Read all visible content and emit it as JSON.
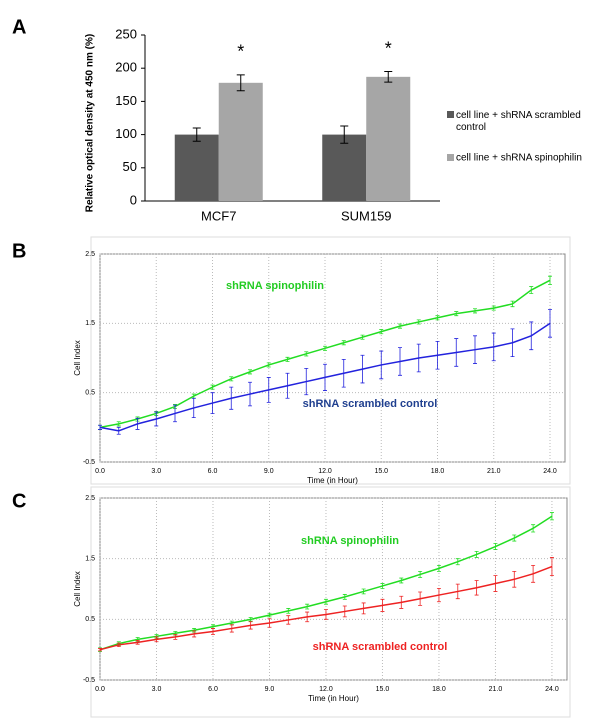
{
  "chart_data": [
    {
      "type": "bar",
      "panel_label": "A",
      "y_label": "Relative optical density at 450 nm (%)",
      "categories": [
        "MCF7",
        "SUM159"
      ],
      "series": [
        {
          "name": "cell line + shRNA scrambled control",
          "color": "#595959",
          "values": [
            100,
            100
          ],
          "errors": [
            10,
            13
          ]
        },
        {
          "name": "cell line + shRNA spinophilin",
          "color": "#a6a6a6",
          "values": [
            178,
            187
          ],
          "errors": [
            12,
            8
          ]
        }
      ],
      "annotations": [
        {
          "text": "*"
        },
        {
          "text": "*"
        }
      ],
      "ylim": [
        0,
        250
      ],
      "yticks": [
        0,
        50,
        100,
        150,
        200,
        250
      ]
    },
    {
      "type": "line",
      "panel_label": "B",
      "x_label": "Time (in Hour)",
      "y_label": "Cell Index",
      "x": [
        0,
        1,
        2,
        3,
        4,
        5,
        6,
        7,
        8,
        9,
        10,
        11,
        12,
        13,
        14,
        15,
        16,
        17,
        18,
        19,
        20,
        21,
        22,
        23,
        24
      ],
      "series": [
        {
          "name": "shRNA spinophilin",
          "color": "#22dd22",
          "values": [
            0.0,
            0.05,
            0.12,
            0.2,
            0.3,
            0.45,
            0.58,
            0.7,
            0.8,
            0.9,
            0.98,
            1.06,
            1.14,
            1.22,
            1.3,
            1.38,
            1.46,
            1.52,
            1.58,
            1.64,
            1.68,
            1.72,
            1.78,
            1.98,
            2.12
          ],
          "errors": [
            0.03,
            0.03,
            0.03,
            0.03,
            0.03,
            0.03,
            0.03,
            0.03,
            0.03,
            0.03,
            0.03,
            0.03,
            0.03,
            0.03,
            0.03,
            0.03,
            0.03,
            0.03,
            0.03,
            0.03,
            0.03,
            0.03,
            0.04,
            0.05,
            0.06
          ]
        },
        {
          "name": "shRNA scrambled control",
          "color": "#2222dd",
          "values": [
            0.0,
            -0.05,
            0.05,
            0.12,
            0.2,
            0.28,
            0.35,
            0.42,
            0.48,
            0.54,
            0.6,
            0.66,
            0.72,
            0.78,
            0.84,
            0.9,
            0.95,
            1.0,
            1.04,
            1.08,
            1.12,
            1.16,
            1.22,
            1.32,
            1.5
          ],
          "errors": [
            0.03,
            0.05,
            0.08,
            0.1,
            0.12,
            0.14,
            0.15,
            0.16,
            0.17,
            0.18,
            0.18,
            0.19,
            0.19,
            0.2,
            0.2,
            0.2,
            0.2,
            0.2,
            0.2,
            0.2,
            0.2,
            0.2,
            0.2,
            0.2,
            0.2
          ]
        }
      ],
      "annotations": [
        {
          "text": "shRNA  spinophilin",
          "color": "#22cc22"
        },
        {
          "text": "shRNA  scrambled control",
          "color": "#1f3f8f"
        }
      ],
      "xlim": [
        0,
        24.8
      ],
      "ylim": [
        -0.5,
        2.5
      ],
      "xticks": [
        {
          "value": 0,
          "label": "0.0"
        },
        {
          "value": 3,
          "label": "3.0"
        },
        {
          "value": 6,
          "label": "6.0"
        },
        {
          "value": 9,
          "label": "9.0"
        },
        {
          "value": 12,
          "label": "12.0"
        },
        {
          "value": 15,
          "label": "15.0"
        },
        {
          "value": 18,
          "label": "18.0"
        },
        {
          "value": 21,
          "label": "21.0"
        },
        {
          "value": 24,
          "label": "24.0"
        }
      ],
      "yticks": [
        -0.5,
        0.5,
        1.5,
        2.5
      ],
      "grid": true
    },
    {
      "type": "line",
      "panel_label": "C",
      "x_label": "Time (in Hour)",
      "y_label": "Cell Index",
      "x": [
        0,
        1,
        2,
        3,
        4,
        5,
        6,
        7,
        8,
        9,
        10,
        11,
        12,
        13,
        14,
        15,
        16,
        17,
        18,
        19,
        20,
        21,
        22,
        23,
        24
      ],
      "series": [
        {
          "name": "shRNA spinophilin",
          "color": "#22dd22",
          "values": [
            0.0,
            0.1,
            0.17,
            0.22,
            0.27,
            0.32,
            0.38,
            0.44,
            0.5,
            0.57,
            0.64,
            0.71,
            0.79,
            0.87,
            0.96,
            1.05,
            1.14,
            1.24,
            1.34,
            1.45,
            1.57,
            1.7,
            1.84,
            2.0,
            2.2
          ],
          "errors": [
            0.03,
            0.03,
            0.03,
            0.03,
            0.03,
            0.03,
            0.03,
            0.03,
            0.03,
            0.03,
            0.04,
            0.04,
            0.04,
            0.04,
            0.04,
            0.04,
            0.04,
            0.05,
            0.05,
            0.05,
            0.05,
            0.05,
            0.05,
            0.06,
            0.06
          ]
        },
        {
          "name": "shRNA scrambled control",
          "color": "#ee2222",
          "values": [
            0.0,
            0.08,
            0.12,
            0.17,
            0.21,
            0.26,
            0.3,
            0.35,
            0.4,
            0.44,
            0.49,
            0.54,
            0.58,
            0.63,
            0.68,
            0.73,
            0.78,
            0.84,
            0.9,
            0.96,
            1.02,
            1.09,
            1.16,
            1.25,
            1.37
          ],
          "errors": [
            0.02,
            0.03,
            0.03,
            0.04,
            0.04,
            0.05,
            0.05,
            0.06,
            0.06,
            0.07,
            0.07,
            0.08,
            0.08,
            0.09,
            0.09,
            0.1,
            0.1,
            0.11,
            0.11,
            0.12,
            0.12,
            0.13,
            0.13,
            0.14,
            0.15
          ]
        }
      ],
      "annotations": [
        {
          "text": "shRNA  spinophilin",
          "color": "#22cc22"
        },
        {
          "text": "shRNA  scrambled control",
          "color": "#ee2222"
        }
      ],
      "xlim": [
        0,
        24.8
      ],
      "ylim": [
        -0.5,
        2.5
      ],
      "xticks": [
        {
          "value": 0,
          "label": "0.0"
        },
        {
          "value": 3,
          "label": "3.0"
        },
        {
          "value": 6,
          "label": "6.0"
        },
        {
          "value": 9,
          "label": "9.0"
        },
        {
          "value": 12,
          "label": "12.0"
        },
        {
          "value": 15,
          "label": "15.0"
        },
        {
          "value": 18,
          "label": "18.0"
        },
        {
          "value": 21,
          "label": "21.0"
        },
        {
          "value": 24,
          "label": "24.0"
        }
      ],
      "yticks": [
        -0.5,
        0.5,
        1.5,
        2.5
      ],
      "grid": true
    }
  ]
}
